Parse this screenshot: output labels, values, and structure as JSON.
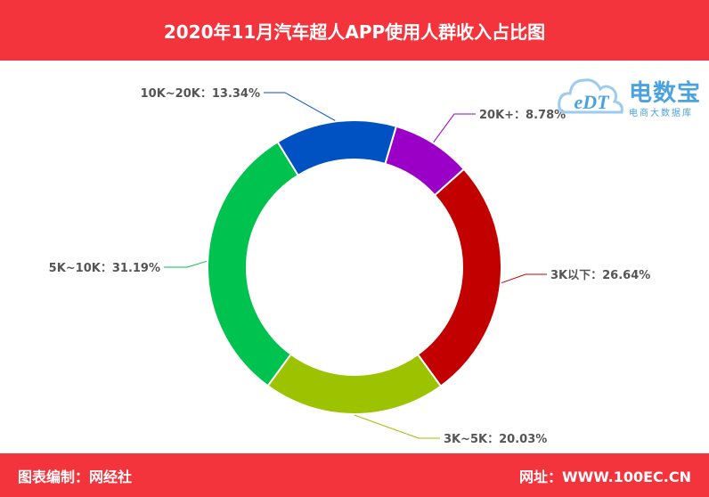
{
  "colors": {
    "brand_red": "#f4343c",
    "label_text": "#555555",
    "logo_blue": "#4aa3e0"
  },
  "header": {
    "title": "2020年11月汽车超人APP使用人群收入占比图"
  },
  "footer": {
    "left": "图表编制：网经社",
    "right": "网址：WWW.100EC.CN"
  },
  "logo": {
    "wordmark": "电数宝",
    "tagline": "电商大数据库",
    "emblem_text": "eDT",
    "icon": "cloud-icon"
  },
  "chart_data": {
    "type": "pie",
    "subtype": "donut",
    "title": "2020年11月汽车超人APP使用人群收入占比图",
    "slices": [
      {
        "name": "20K+",
        "value": 8.78,
        "label": "20K+：8.78%",
        "color": "#9a00c6"
      },
      {
        "name": "3K以下",
        "value": 26.64,
        "label": "3K以下：26.64%",
        "color": "#c20000"
      },
      {
        "name": "3K~5K",
        "value": 20.03,
        "label": "3K~5K：20.03%",
        "color": "#9cc200"
      },
      {
        "name": "5K~10K",
        "value": 31.19,
        "label": "5K~10K：31.19%",
        "color": "#00c24e"
      },
      {
        "name": "10K~20K",
        "value": 13.34,
        "label": "10K~20K：13.34%",
        "color": "#0051c2"
      }
    ],
    "legend": "none",
    "start_angle_deg": 16.5,
    "direction": "clockwise"
  }
}
